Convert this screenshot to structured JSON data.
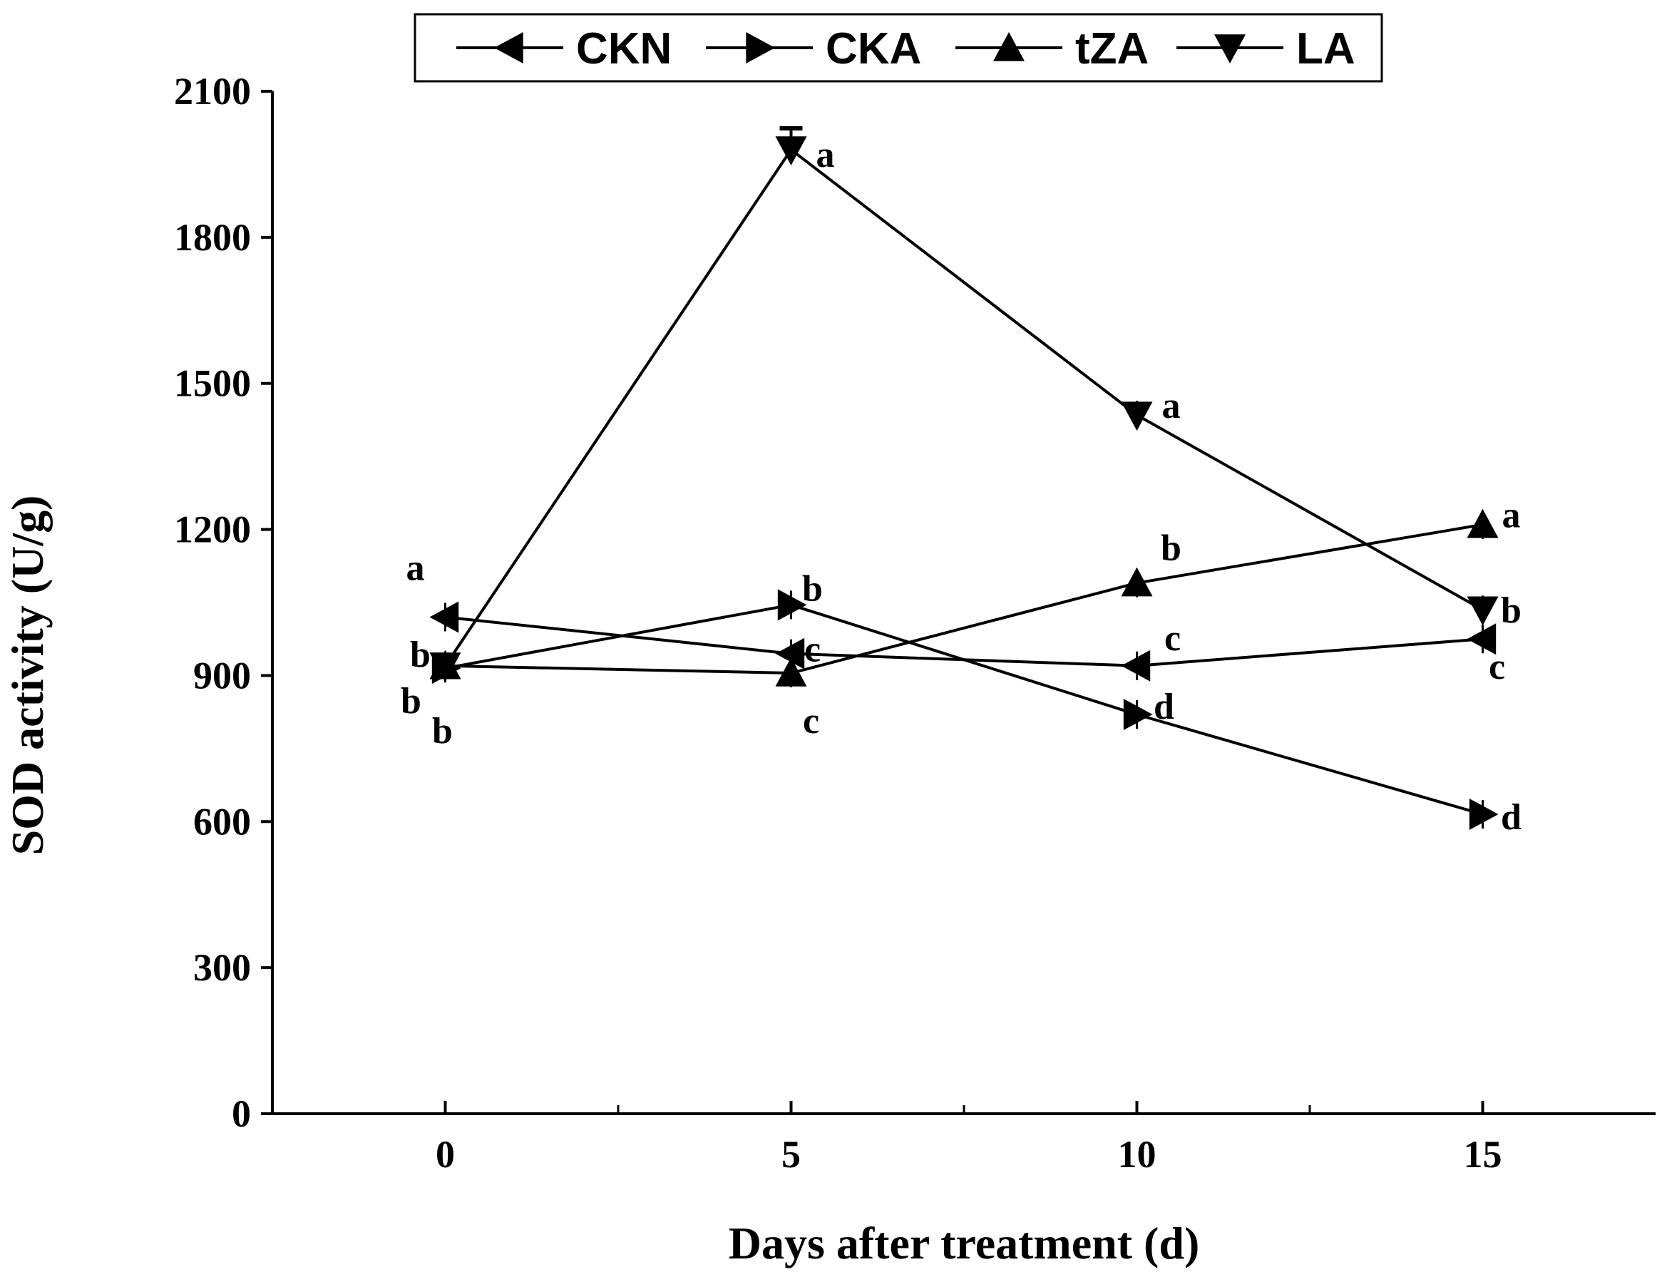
{
  "chart_data": {
    "type": "line",
    "title": "",
    "xlabel": "Days after treatment (d)",
    "ylabel": "SOD activity (U/g)",
    "x": [
      0,
      5,
      10,
      15
    ],
    "xlim": [
      -2.5,
      17.5
    ],
    "ylim": [
      0,
      2100
    ],
    "xticks": [
      0,
      5,
      10,
      15
    ],
    "yticks": [
      0,
      300,
      600,
      900,
      1200,
      1500,
      1800,
      2100
    ],
    "grid": false,
    "legend_position": "top",
    "series": [
      {
        "name": "CKN",
        "marker": "triangle-left",
        "values": [
          1020,
          945,
          920,
          975
        ],
        "letters": [
          "a",
          "c",
          "c",
          "c"
        ]
      },
      {
        "name": "CKA",
        "marker": "triangle-right",
        "values": [
          915,
          1045,
          820,
          615
        ],
        "letters": [
          "b",
          "b",
          "d",
          "d"
        ]
      },
      {
        "name": "tZA",
        "marker": "triangle-up",
        "values": [
          920,
          905,
          1090,
          1210
        ],
        "letters": [
          "b",
          "c",
          "b",
          "a"
        ]
      },
      {
        "name": "LA",
        "marker": "triangle-down",
        "values": [
          920,
          1980,
          1435,
          1035
        ],
        "letters": [
          "b",
          "a",
          "a",
          "b"
        ]
      }
    ]
  }
}
